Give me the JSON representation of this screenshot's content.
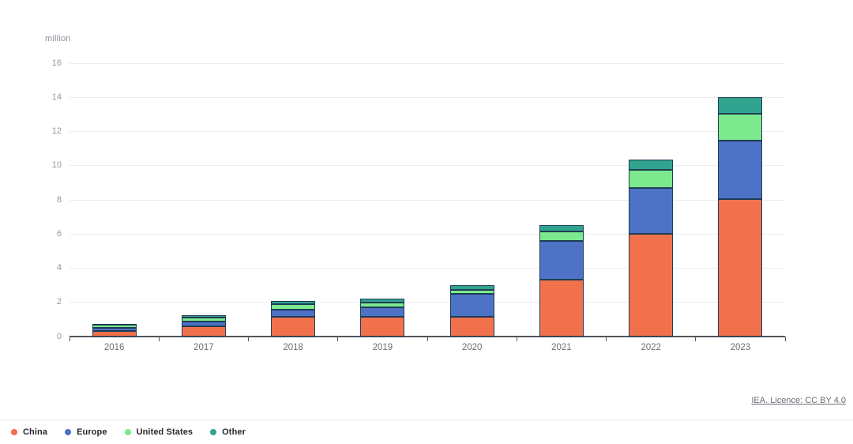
{
  "footer": {
    "license_text": "IEA. Licence: CC BY 4.0"
  },
  "chart_data": {
    "type": "bar",
    "stacked": true,
    "title": "",
    "xlabel": "",
    "ylabel": "million",
    "ylim": [
      0,
      16
    ],
    "yticks": [
      0,
      2,
      4,
      6,
      8,
      10,
      12,
      14,
      16
    ],
    "grid": true,
    "legend_position": "bottom-left",
    "categories": [
      "2016",
      "2017",
      "2018",
      "2019",
      "2020",
      "2021",
      "2022",
      "2023"
    ],
    "series": [
      {
        "name": "China",
        "color": "#F2714D",
        "values": [
          0.32,
          0.58,
          1.15,
          1.15,
          1.15,
          3.35,
          6.0,
          8.05
        ]
      },
      {
        "name": "Europe",
        "color": "#4D72C6",
        "values": [
          0.2,
          0.3,
          0.4,
          0.55,
          1.35,
          2.25,
          2.7,
          3.4
        ]
      },
      {
        "name": "United States",
        "color": "#7CE98E",
        "values": [
          0.16,
          0.25,
          0.35,
          0.3,
          0.25,
          0.55,
          1.05,
          1.6
        ]
      },
      {
        "name": "Other",
        "color": "#31A38E",
        "values": [
          0.07,
          0.12,
          0.2,
          0.2,
          0.25,
          0.35,
          0.6,
          0.95
        ]
      }
    ],
    "totals": [
      0.75,
      1.25,
      2.1,
      2.2,
      3.0,
      6.5,
      10.35,
      14.0
    ]
  }
}
